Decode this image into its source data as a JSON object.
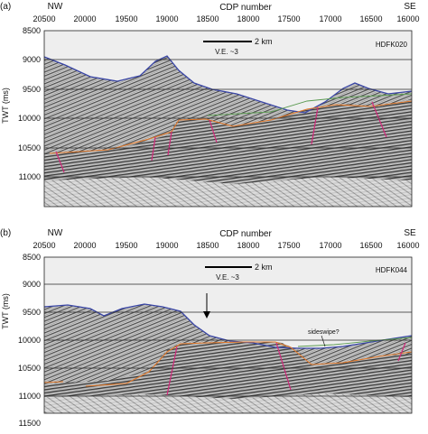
{
  "panels": [
    {
      "letter": "(a)",
      "left_label": "NW",
      "right_label": "SE",
      "top_axis_label": "CDP number",
      "cdp_ticks": [
        "20500",
        "20000",
        "19500",
        "19000",
        "18500",
        "18000",
        "17500",
        "17000",
        "16500",
        "16000"
      ],
      "y_axis_label": "TWT (ms)",
      "twt_ticks": [
        "8500",
        "9000",
        "9500",
        "10000",
        "10500",
        "11000"
      ],
      "scale_bar_label": "2 km",
      "ve_label": "V.E. ~3",
      "line_name": "HDFK020",
      "annotations": []
    },
    {
      "letter": "(b)",
      "left_label": "NW",
      "right_label": "SE",
      "top_axis_label": "CDP number",
      "cdp_ticks": [
        "20500",
        "20000",
        "19500",
        "19000",
        "18500",
        "18000",
        "17500",
        "17000",
        "16500",
        "16000"
      ],
      "y_axis_label": "TWT (ms)",
      "twt_ticks": [
        "8500",
        "9000",
        "9500",
        "10000",
        "10500",
        "11000",
        "11500"
      ],
      "scale_bar_label": "2 km",
      "ve_label": "V.E. ~3",
      "line_name": "HDFK044",
      "annotations": [
        "sideswipe?"
      ]
    }
  ],
  "colors": {
    "seafloor": "#3a46a6",
    "reflector_orange": "#e0782a",
    "reflector_green": "#5a9a50",
    "fault": "#d0287a",
    "water": "#eeeeee",
    "gridline": "#2a2a2a"
  }
}
